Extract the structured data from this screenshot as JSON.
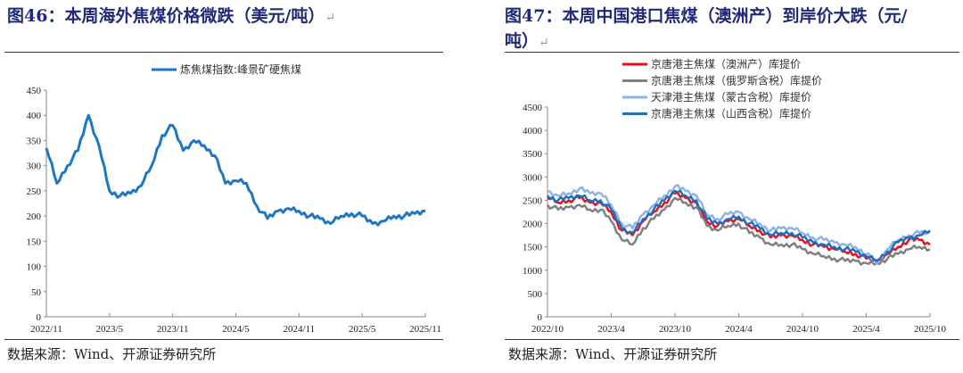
{
  "left": {
    "title": "图46：本周海外焦煤价格微跌（美元/吨）",
    "source": "数据来源：Wind、开源证券研究所"
  },
  "right": {
    "title_line1": "图47：本周中国港口焦煤（澳洲产）到岸价大跌（元/",
    "title_line2": "吨）",
    "source": "数据来源：Wind、开源证券研究所"
  },
  "chart_data": [
    {
      "type": "line",
      "title": "",
      "ylim": [
        0,
        450
      ],
      "yticks": [
        0,
        50,
        100,
        150,
        200,
        250,
        300,
        350,
        400,
        450
      ],
      "xticks": [
        "2022/11",
        "2023/5",
        "2023/11",
        "2024/5",
        "2024/11",
        "2025/5",
        "2025/11"
      ],
      "x_start": "2022/11",
      "x_end": "2025/11",
      "color": "#1f77c4",
      "series": [
        {
          "name": "炼焦煤指数:峰景矿硬焦煤",
          "values": [
            335,
            265,
            300,
            330,
            400,
            340,
            250,
            240,
            245,
            260,
            300,
            360,
            380,
            330,
            350,
            340,
            320,
            265,
            270,
            265,
            220,
            195,
            210,
            215,
            210,
            200,
            195,
            185,
            200,
            205,
            200,
            185,
            190,
            200,
            200,
            205,
            210
          ]
        }
      ]
    },
    {
      "type": "line",
      "title": "",
      "ylim": [
        0,
        4500
      ],
      "yticks": [
        0,
        500,
        1000,
        1500,
        2000,
        2500,
        3000,
        3500,
        4000,
        4500
      ],
      "xticks": [
        "2022/10",
        "2023/4",
        "2023/10",
        "2024/4",
        "2024/10",
        "2025/4",
        "2025/10"
      ],
      "x_start": "2022/10",
      "x_end": "2025/10",
      "series": [
        {
          "name": "京唐港主焦煤（澳洲产）库提价",
          "color": "#e8101a",
          "values": [
            2550,
            2450,
            2500,
            2550,
            2450,
            2450,
            2250,
            1850,
            1750,
            2050,
            2250,
            2450,
            2650,
            2550,
            2450,
            2050,
            1950,
            2050,
            2100,
            1950,
            1850,
            1700,
            1750,
            1750,
            1650,
            1550,
            1500,
            1450,
            1400,
            1350,
            1250,
            1200,
            1350,
            1500,
            1650,
            1650,
            1550
          ]
        },
        {
          "name": "京唐港主焦煤（俄罗斯含税）库提价",
          "color": "#808080",
          "values": [
            2400,
            2300,
            2350,
            2400,
            2300,
            2300,
            2050,
            1650,
            1550,
            1900,
            2100,
            2300,
            2550,
            2450,
            2350,
            1950,
            1850,
            1950,
            2000,
            1800,
            1700,
            1550,
            1550,
            1550,
            1450,
            1350,
            1300,
            1250,
            1200,
            1200,
            1150,
            1150,
            1250,
            1350,
            1450,
            1500,
            1450
          ]
        },
        {
          "name": "天津港主焦煤（蒙古含税）库提价",
          "color": "#8fb4e3",
          "values": [
            2700,
            2600,
            2650,
            2750,
            2650,
            2650,
            2400,
            2000,
            1900,
            2200,
            2400,
            2600,
            2800,
            2700,
            2600,
            2200,
            2100,
            2200,
            2250,
            2100,
            2000,
            1850,
            1900,
            1900,
            1800,
            1700,
            1650,
            1600,
            1550,
            1500,
            1350,
            1150,
            1450,
            1650,
            1750,
            1800,
            1800
          ]
        },
        {
          "name": "京唐港主焦煤（山西含税）库提价",
          "color": "#1f6fc0",
          "values": [
            2600,
            2500,
            2550,
            2600,
            2500,
            2500,
            2300,
            1900,
            1800,
            2100,
            2300,
            2500,
            2700,
            2600,
            2500,
            2100,
            2000,
            2100,
            2150,
            2000,
            1900,
            1750,
            1800,
            1800,
            1700,
            1600,
            1550,
            1500,
            1450,
            1400,
            1300,
            1200,
            1400,
            1600,
            1700,
            1750,
            1850
          ]
        }
      ]
    }
  ]
}
